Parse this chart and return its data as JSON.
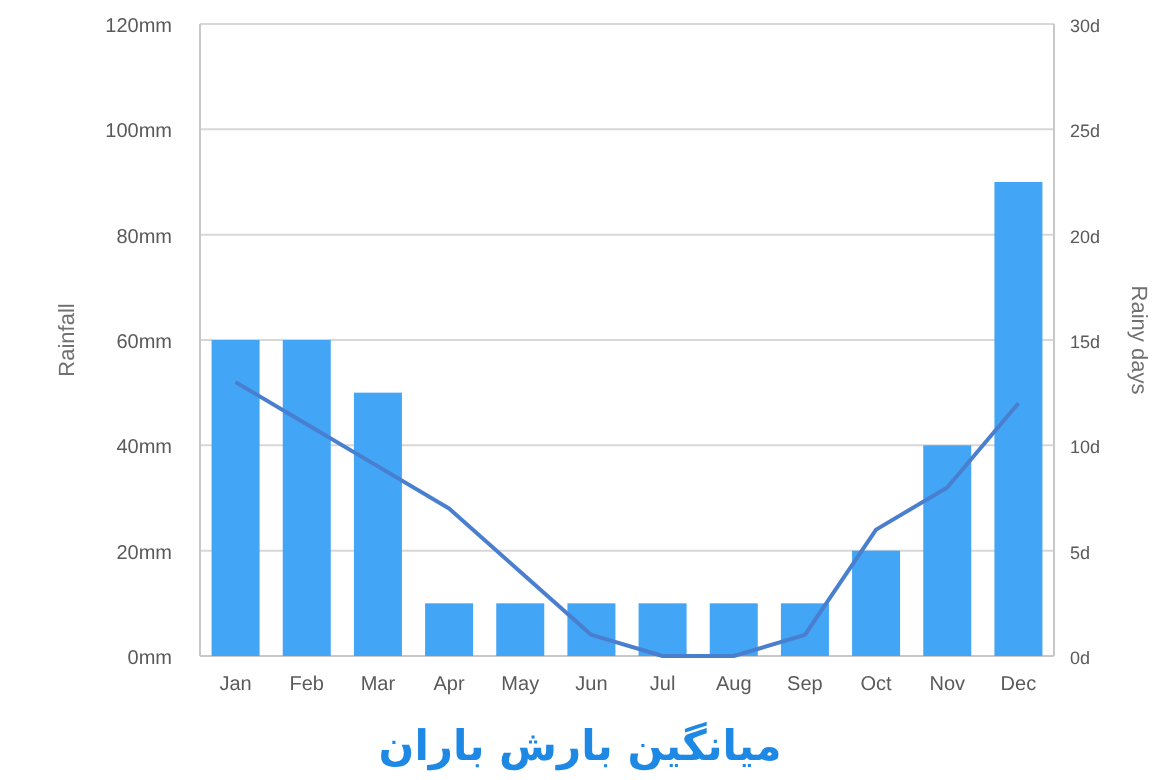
{
  "chart_data": {
    "type": "bar",
    "title": "میانگین بارش باران",
    "ylabel": "Rainfall",
    "y2label": "Rainy days",
    "categories": [
      "Jan",
      "Feb",
      "Mar",
      "Apr",
      "May",
      "Jun",
      "Jul",
      "Aug",
      "Sep",
      "Oct",
      "Nov",
      "Dec"
    ],
    "series": [
      {
        "color": "#42a5f5",
        "values": [
          60,
          60,
          50,
          10,
          10,
          10,
          10,
          10,
          10,
          20,
          40,
          90
        ]
      },
      {
        "type": "line",
        "axis": "y2",
        "color": "#4a7fcf",
        "values": [
          13,
          11,
          9,
          7,
          4,
          1,
          0,
          0,
          1,
          6,
          8,
          12
        ]
      }
    ],
    "ylim": [
      0,
      120
    ],
    "yticks": [
      {
        "value": 0,
        "label": "0mm"
      },
      {
        "value": 20,
        "label": "20mm"
      },
      {
        "value": 40,
        "label": "40mm"
      },
      {
        "value": 60,
        "label": "60mm"
      },
      {
        "value": 80,
        "label": "80mm"
      },
      {
        "value": 100,
        "label": "100mm"
      },
      {
        "value": 120,
        "label": "120mm"
      }
    ],
    "y2lim": [
      0,
      30
    ],
    "y2ticks": [
      {
        "value": 0,
        "label": "0d"
      },
      {
        "value": 5,
        "label": "5d"
      },
      {
        "value": 10,
        "label": "10d"
      },
      {
        "value": 15,
        "label": "15d"
      },
      {
        "value": 20,
        "label": "20d"
      },
      {
        "value": 25,
        "label": "25d"
      },
      {
        "value": 30,
        "label": "30d"
      }
    ],
    "grid": "y",
    "marker": "none",
    "line_style": "solid"
  }
}
